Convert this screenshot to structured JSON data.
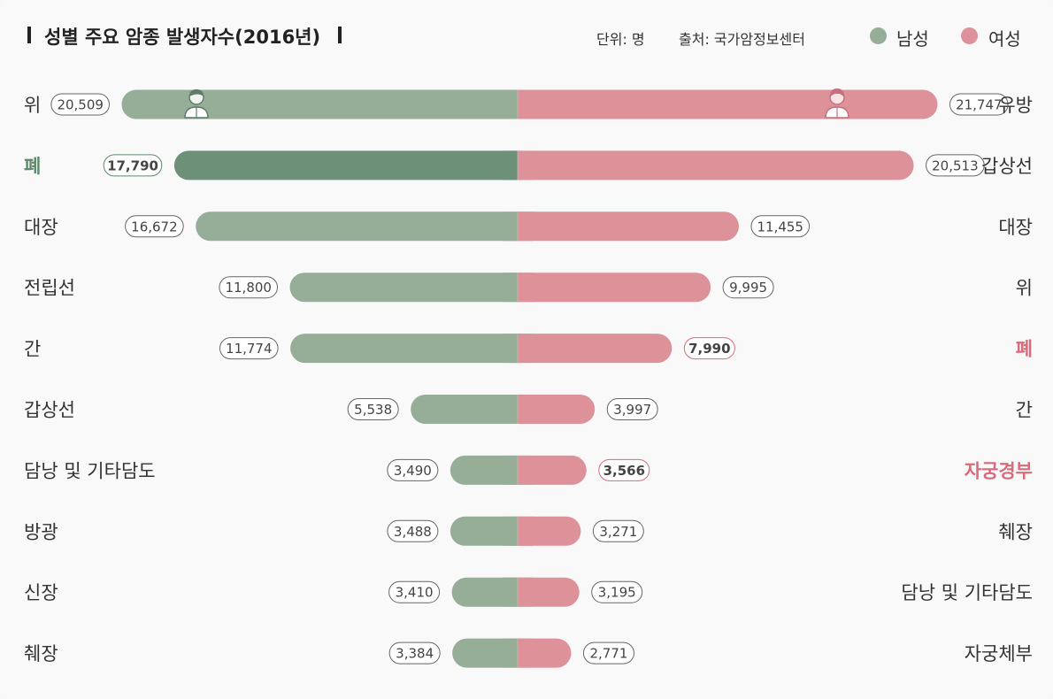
{
  "header": {
    "title": "성별 주요 암종 발생자수(2016년)",
    "unit": "단위: 명",
    "source": "출처: 국가암정보센터"
  },
  "legend": {
    "male_label": "남성",
    "female_label": "여성",
    "male_color": "#96ad98",
    "female_color": "#dd9199"
  },
  "colors": {
    "male_highlight": "#6d9079",
    "male_highlight_text": "#5f8a6a",
    "female_highlight_text": "#d96a7a"
  },
  "icons": {
    "male_icon": "male-person-icon",
    "female_icon": "female-person-icon"
  },
  "chart_data": {
    "type": "bar",
    "orientation": "horizontal-diverging",
    "title": "성별 주요 암종 발생자수(2016년)",
    "unit": "명",
    "xlim": [
      0,
      22500
    ],
    "male": {
      "name": "남성",
      "categories": [
        "위",
        "폐",
        "대장",
        "전립선",
        "간",
        "갑상선",
        "담낭 및 기타담도",
        "방광",
        "신장",
        "췌장"
      ],
      "values": [
        20509,
        17790,
        16672,
        11800,
        11774,
        5538,
        3490,
        3488,
        3410,
        3384
      ],
      "value_labels": [
        "20,509",
        "17,790",
        "16,672",
        "11,800",
        "11,774",
        "5,538",
        "3,490",
        "3,488",
        "3,410",
        "3,384"
      ],
      "highlight_index": 1
    },
    "female": {
      "name": "여성",
      "categories": [
        "유방",
        "갑상선",
        "대장",
        "위",
        "폐",
        "간",
        "자궁경부",
        "췌장",
        "담낭 및 기타담도",
        "자궁체부"
      ],
      "values": [
        21747,
        20513,
        11455,
        9995,
        7990,
        3997,
        3566,
        3271,
        3195,
        2771
      ],
      "value_labels": [
        "21,747",
        "20,513",
        "11,455",
        "9,995",
        "7,990",
        "3,997",
        "3,566",
        "3,271",
        "3,195",
        "2,771"
      ],
      "highlight_indices": [
        4,
        6
      ]
    }
  }
}
